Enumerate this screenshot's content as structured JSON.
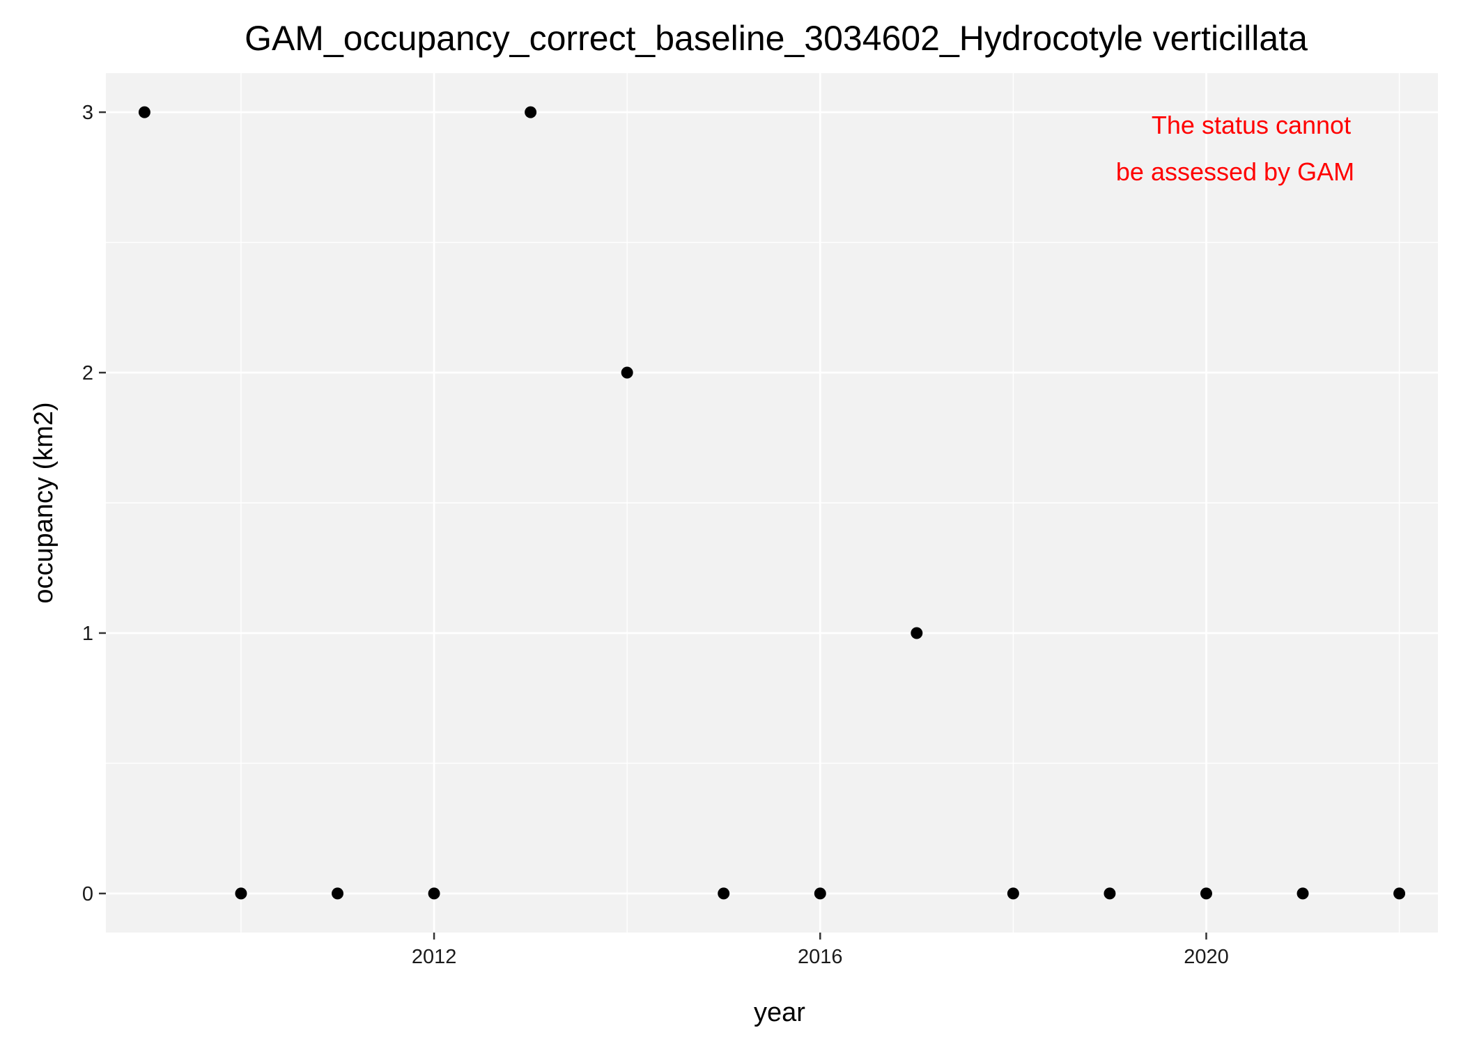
{
  "chart_data": {
    "type": "scatter",
    "title": "GAM_occupancy_correct_baseline_3034602_Hydrocotyle verticillata",
    "xlabel": "year",
    "ylabel": "occupancy (km2)",
    "xlim": [
      2008.6,
      2022.4
    ],
    "ylim": [
      -0.15,
      3.15
    ],
    "x_ticks": [
      2012,
      2016,
      2020
    ],
    "x_tick_labels": [
      "2012",
      "2016",
      "2020"
    ],
    "y_ticks": [
      0,
      1,
      2,
      3
    ],
    "y_tick_labels": [
      "0",
      "1",
      "2",
      "3"
    ],
    "grid": true,
    "points": [
      {
        "x": 2009,
        "y": 3
      },
      {
        "x": 2010,
        "y": 0
      },
      {
        "x": 2011,
        "y": 0
      },
      {
        "x": 2012,
        "y": 0
      },
      {
        "x": 2013,
        "y": 3
      },
      {
        "x": 2014,
        "y": 2
      },
      {
        "x": 2015,
        "y": 0
      },
      {
        "x": 2016,
        "y": 0
      },
      {
        "x": 2017,
        "y": 1
      },
      {
        "x": 2018,
        "y": 0
      },
      {
        "x": 2019,
        "y": 0
      },
      {
        "x": 2020,
        "y": 0
      },
      {
        "x": 2021,
        "y": 0
      },
      {
        "x": 2022,
        "y": 0
      }
    ],
    "annotation": {
      "lines": [
        "The status cannot",
        "be assessed by GAM"
      ],
      "color": "#ff0000",
      "placement": "top-right"
    },
    "colors": {
      "panel_background": "#f2f2f2",
      "grid": "#ffffff",
      "point": "#000000"
    }
  }
}
